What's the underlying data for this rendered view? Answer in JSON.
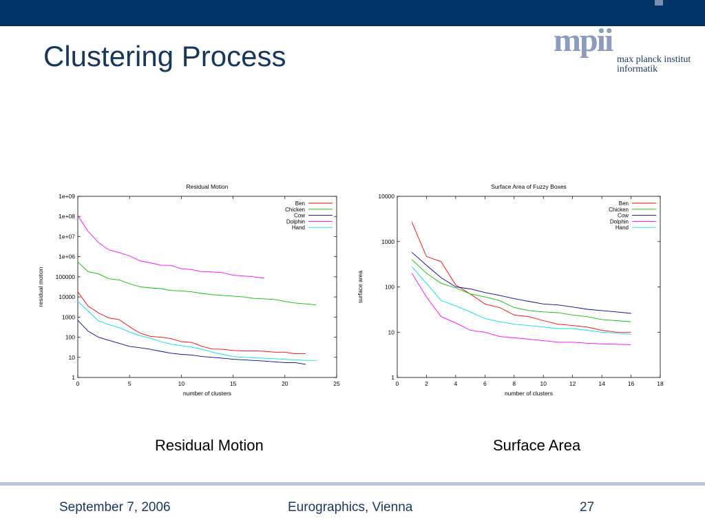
{
  "slide": {
    "title": "Clustering Process",
    "logo": {
      "text": "mpii",
      "line1": "max planck institut",
      "line2": "informatik"
    },
    "captions": {
      "left": "Residual Motion",
      "right": "Surface Area"
    },
    "footer": {
      "date": "September 7, 2006",
      "event": "Eurographics, Vienna",
      "page": "27"
    }
  },
  "colors": {
    "band": "#003366",
    "title": "#17375e",
    "Ben": "#ff0000",
    "Chicken": "#00c000",
    "Cow": "#0000a0",
    "Dolphin": "#ff00ff",
    "Hand": "#00e0e0"
  },
  "chart_data": [
    {
      "type": "line",
      "title": "Residual Motion",
      "xlabel": "number of clusters",
      "ylabel": "residual motion",
      "xlim": [
        0,
        25
      ],
      "ylim": [
        1,
        1000000000
      ],
      "yscale": "log",
      "grid": false,
      "legend": "top-right",
      "x_ticks": [
        0,
        5,
        10,
        15,
        20,
        25
      ],
      "x_tick_labels": [
        "0",
        "5",
        "10",
        "15",
        "20",
        "25"
      ],
      "y_ticks": [
        1,
        10,
        100,
        1000,
        10000,
        100000,
        1000000,
        10000000,
        100000000,
        1000000000
      ],
      "y_tick_labels": [
        "1",
        "10",
        "100",
        "1000",
        "10000",
        "100000",
        "1e+06",
        "1e+07",
        "1e+08",
        "1e+09"
      ],
      "series": [
        {
          "name": "Ben",
          "color": "#ff0000",
          "x": [
            0,
            1,
            2,
            3,
            4,
            5,
            6,
            7,
            8,
            9,
            10,
            11,
            12,
            13,
            14,
            15,
            16,
            17,
            18,
            19,
            20,
            21,
            22
          ],
          "y": [
            18000,
            3500,
            1600,
            900,
            750,
            330,
            160,
            110,
            100,
            85,
            60,
            55,
            35,
            26,
            25,
            22,
            21,
            21,
            20,
            18,
            18,
            15,
            15
          ]
        },
        {
          "name": "Chicken",
          "color": "#00c000",
          "x": [
            0,
            1,
            2,
            3,
            4,
            5,
            6,
            7,
            8,
            9,
            10,
            11,
            12,
            13,
            14,
            15,
            16,
            17,
            18,
            19,
            20,
            21,
            22,
            23
          ],
          "y": [
            550000,
            180000,
            140000,
            80000,
            70000,
            45000,
            32000,
            28000,
            26000,
            21000,
            20000,
            18000,
            15000,
            13000,
            12000,
            11000,
            10000,
            8500,
            8000,
            7500,
            6000,
            5000,
            4500,
            4000
          ]
        },
        {
          "name": "Cow",
          "color": "#0000a0",
          "x": [
            0,
            1,
            2,
            3,
            4,
            5,
            6,
            7,
            8,
            9,
            10,
            11,
            12,
            13,
            14,
            15,
            16,
            17,
            18,
            19,
            20,
            21,
            22
          ],
          "y": [
            700,
            200,
            100,
            70,
            50,
            35,
            30,
            25,
            20,
            16,
            14,
            13,
            11,
            10,
            9,
            8,
            7.5,
            7,
            6.5,
            6,
            5.5,
            5.5,
            4.5
          ]
        },
        {
          "name": "Dolphin",
          "color": "#ff00ff",
          "x": [
            0,
            1,
            2,
            3,
            4,
            5,
            6,
            7,
            8,
            9,
            10,
            11,
            12,
            13,
            14,
            15,
            16,
            17,
            18
          ],
          "y": [
            110000000,
            18000000,
            5000000,
            2200000,
            1600000,
            1100000,
            620000,
            500000,
            380000,
            370000,
            250000,
            230000,
            180000,
            175000,
            160000,
            120000,
            110000,
            100000,
            85000
          ]
        },
        {
          "name": "Hand",
          "color": "#00e0e0",
          "x": [
            0,
            1,
            2,
            3,
            4,
            5,
            6,
            7,
            8,
            9,
            10,
            11,
            12,
            13,
            14,
            15,
            16,
            17,
            18,
            19,
            20,
            21,
            22,
            23
          ],
          "y": [
            6000,
            2000,
            650,
            420,
            300,
            180,
            120,
            90,
            60,
            45,
            38,
            32,
            25,
            18,
            14,
            11,
            10,
            9.5,
            9,
            8.5,
            8,
            7.5,
            7,
            7
          ]
        }
      ]
    },
    {
      "type": "line",
      "title": "Surface Area of Fuzzy Boxes",
      "xlabel": "number of clusters",
      "ylabel": "surface area",
      "xlim": [
        0,
        18
      ],
      "ylim": [
        1,
        10000
      ],
      "yscale": "log",
      "grid": false,
      "legend": "top-right",
      "x_ticks": [
        0,
        2,
        4,
        6,
        8,
        10,
        12,
        14,
        16,
        18
      ],
      "x_tick_labels": [
        "0",
        "2",
        "4",
        "6",
        "8",
        "10",
        "12",
        "14",
        "16",
        "18"
      ],
      "y_ticks": [
        1,
        10,
        100,
        1000,
        10000
      ],
      "y_tick_labels": [
        "1",
        "10",
        "100",
        "1000",
        "10000"
      ],
      "series": [
        {
          "name": "Ben",
          "color": "#ff0000",
          "x": [
            1,
            2,
            3,
            4,
            5,
            6,
            7,
            8,
            9,
            10,
            11,
            12,
            13,
            14,
            15,
            16
          ],
          "y": [
            2700,
            470,
            360,
            110,
            70,
            42,
            35,
            24,
            22,
            18,
            15,
            14,
            13,
            11,
            10,
            10
          ]
        },
        {
          "name": "Chicken",
          "color": "#00c000",
          "x": [
            1,
            2,
            3,
            4,
            5,
            6,
            7,
            8,
            9,
            10,
            11,
            12,
            13,
            14,
            15,
            16
          ],
          "y": [
            400,
            200,
            120,
            95,
            70,
            60,
            50,
            35,
            30,
            28,
            27,
            24,
            22,
            19,
            18,
            17
          ]
        },
        {
          "name": "Cow",
          "color": "#0000a0",
          "x": [
            1,
            2,
            3,
            4,
            5,
            6,
            7,
            8,
            9,
            10,
            11,
            12,
            13,
            14,
            15,
            16
          ],
          "y": [
            580,
            300,
            160,
            100,
            90,
            75,
            65,
            55,
            48,
            42,
            40,
            36,
            32,
            30,
            28,
            26
          ]
        },
        {
          "name": "Dolphin",
          "color": "#ff00ff",
          "x": [
            1,
            2,
            3,
            4,
            5,
            6,
            7,
            8,
            9,
            10,
            11,
            12,
            13,
            14,
            15,
            16
          ],
          "y": [
            200,
            60,
            22,
            16,
            11,
            10,
            8,
            7.5,
            7,
            6.5,
            6,
            6,
            5.7,
            5.5,
            5.4,
            5.3
          ]
        },
        {
          "name": "Hand",
          "color": "#00e0e0",
          "x": [
            1,
            2,
            3,
            4,
            5,
            6,
            7,
            8,
            9,
            10,
            11,
            12,
            13,
            14,
            15,
            16
          ],
          "y": [
            280,
            120,
            50,
            38,
            28,
            20,
            17,
            15,
            14,
            13,
            12,
            12,
            11,
            10,
            9.5,
            9
          ]
        }
      ]
    }
  ]
}
